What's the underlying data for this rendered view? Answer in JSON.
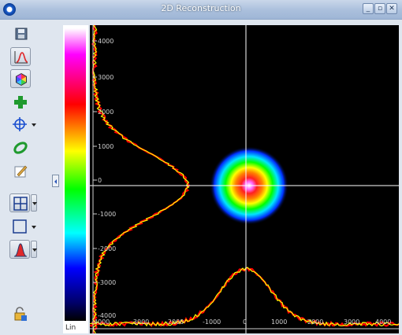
{
  "window": {
    "title": "2D Reconstruction"
  },
  "toolbar": {
    "items": [
      {
        "name": "save-image-button",
        "icon": "save-icon"
      },
      {
        "name": "profile-toggle-button",
        "icon": "profile-curve-icon"
      },
      {
        "name": "color-mode-button",
        "icon": "color-wheel-icon"
      },
      {
        "name": "add-button",
        "icon": "plus-icon"
      },
      {
        "name": "crosshair-button",
        "icon": "crosshair-icon"
      },
      {
        "name": "ellipse-fit-button",
        "icon": "ellipse-icon"
      },
      {
        "name": "edit-button",
        "icon": "edit-icon"
      },
      {
        "name": "grid-button",
        "icon": "grid-icon"
      },
      {
        "name": "region-button",
        "icon": "rectangle-icon"
      },
      {
        "name": "gaussian-fit-button",
        "icon": "gaussian-icon"
      },
      {
        "name": "lock-button",
        "icon": "lock-icon"
      }
    ]
  },
  "colorbar": {
    "scale_label": "Lin",
    "colors": [
      "#ffffff",
      "#ff00ff",
      "#ff0000",
      "#ff8000",
      "#ffff00",
      "#00ff00",
      "#00ffff",
      "#0000ff",
      "#000000"
    ]
  },
  "plot": {
    "y_ticks": [
      "4000",
      "3000",
      "2000",
      "1000",
      "0",
      "-1000",
      "-2000",
      "-3000",
      "-4000"
    ],
    "x_ticks": [
      "-4000",
      "-3000",
      "-2000",
      "-1000",
      "0",
      "1000",
      "2000",
      "3000",
      "4000"
    ],
    "profile_colors": [
      "#ff0000",
      "#ffff00"
    ],
    "crosshair_color": "#ffffff"
  }
}
